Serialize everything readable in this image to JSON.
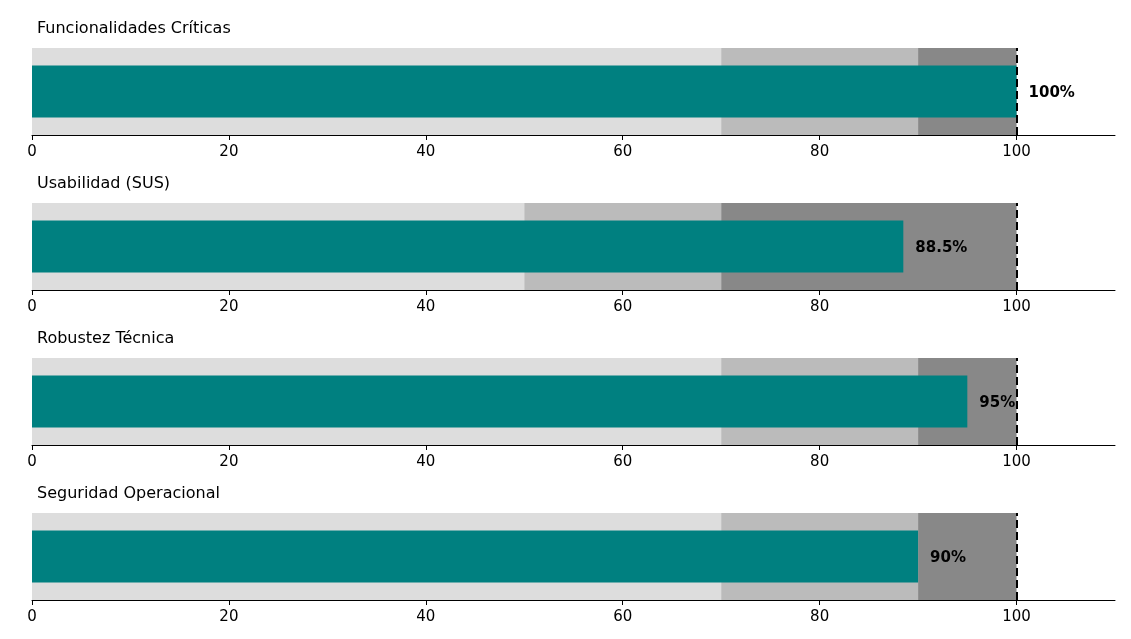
{
  "chart_data": [
    {
      "type": "bar",
      "orientation": "horizontal",
      "title": "Funcionalidades Críticas",
      "categories": [
        null
      ],
      "values": [
        100
      ],
      "color": "#008080",
      "value_labels": [
        "100%"
      ],
      "xlim": [
        0,
        110
      ],
      "xticks": [
        0,
        20,
        40,
        60,
        80,
        100
      ],
      "tick_labels": "x",
      "grid": false,
      "bands": [
        {
          "axis": "x",
          "from": 0,
          "to": 70,
          "color": "#dddddd"
        },
        {
          "axis": "x",
          "from": 70,
          "to": 90,
          "color": "#bbbbbb"
        },
        {
          "axis": "x",
          "from": 90,
          "to": 100,
          "color": "#888888"
        }
      ],
      "ref_lines": [
        {
          "axis": "x",
          "value": 100,
          "color": "#000000",
          "line_style": "dashed"
        }
      ]
    },
    {
      "type": "bar",
      "orientation": "horizontal",
      "title": "Usabilidad (SUS)",
      "categories": [
        null
      ],
      "values": [
        88.5
      ],
      "color": "#008080",
      "value_labels": [
        "88.5%"
      ],
      "xlim": [
        0,
        110
      ],
      "xticks": [
        0,
        20,
        40,
        60,
        80,
        100
      ],
      "tick_labels": "x",
      "grid": false,
      "bands": [
        {
          "axis": "x",
          "from": 0,
          "to": 50,
          "color": "#dddddd"
        },
        {
          "axis": "x",
          "from": 50,
          "to": 70,
          "color": "#bbbbbb"
        },
        {
          "axis": "x",
          "from": 70,
          "to": 100,
          "color": "#888888"
        }
      ],
      "ref_lines": [
        {
          "axis": "x",
          "value": 100,
          "color": "#000000",
          "line_style": "dashed"
        }
      ]
    },
    {
      "type": "bar",
      "orientation": "horizontal",
      "title": "Robustez Técnica",
      "categories": [
        null
      ],
      "values": [
        95
      ],
      "color": "#008080",
      "value_labels": [
        "95%"
      ],
      "xlim": [
        0,
        110
      ],
      "xticks": [
        0,
        20,
        40,
        60,
        80,
        100
      ],
      "tick_labels": "x",
      "grid": false,
      "bands": [
        {
          "axis": "x",
          "from": 0,
          "to": 70,
          "color": "#dddddd"
        },
        {
          "axis": "x",
          "from": 70,
          "to": 90,
          "color": "#bbbbbb"
        },
        {
          "axis": "x",
          "from": 90,
          "to": 100,
          "color": "#888888"
        }
      ],
      "ref_lines": [
        {
          "axis": "x",
          "value": 100,
          "color": "#000000",
          "line_style": "dashed"
        }
      ]
    },
    {
      "type": "bar",
      "orientation": "horizontal",
      "title": "Seguridad Operacional",
      "categories": [
        null
      ],
      "values": [
        90
      ],
      "color": "#008080",
      "value_labels": [
        "90%"
      ],
      "xlim": [
        0,
        110
      ],
      "xticks": [
        0,
        20,
        40,
        60,
        80,
        100
      ],
      "tick_labels": "x",
      "grid": false,
      "bands": [
        {
          "axis": "x",
          "from": 0,
          "to": 70,
          "color": "#dddddd"
        },
        {
          "axis": "x",
          "from": 70,
          "to": 90,
          "color": "#bbbbbb"
        },
        {
          "axis": "x",
          "from": 90,
          "to": 100,
          "color": "#888888"
        }
      ],
      "ref_lines": [
        {
          "axis": "x",
          "value": 100,
          "color": "#000000",
          "line_style": "dashed"
        }
      ]
    }
  ]
}
